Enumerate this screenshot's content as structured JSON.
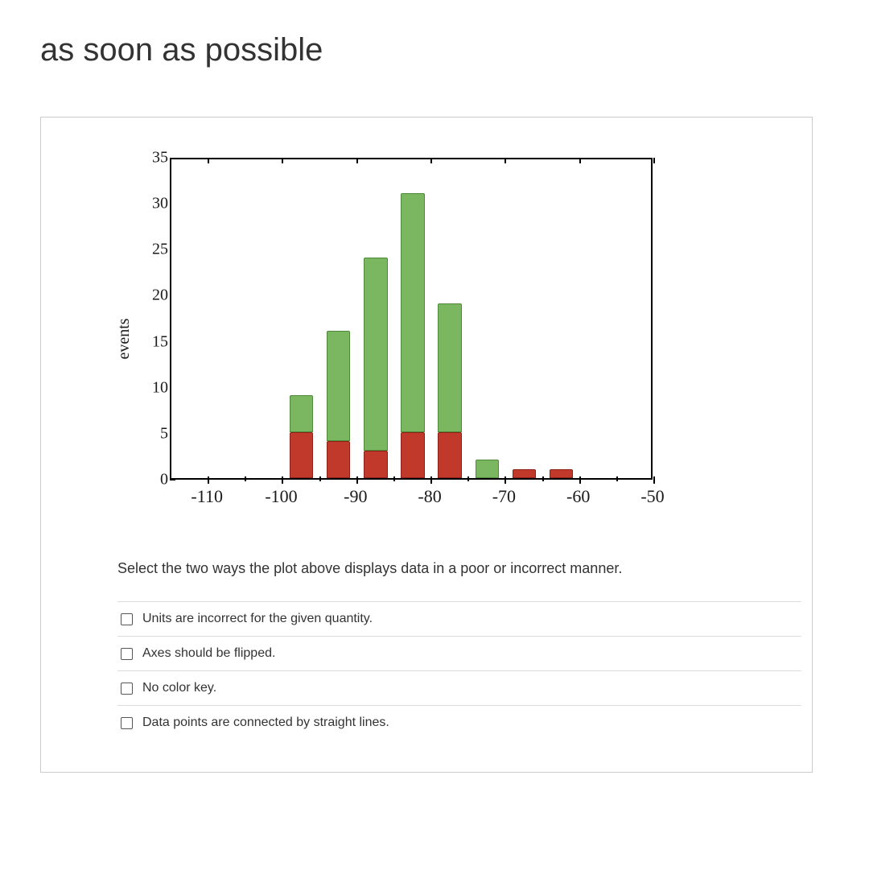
{
  "title": "as soon as possible",
  "chart": {
    "type": "stacked-bar",
    "ylabel": "events",
    "label_fontsize": 20,
    "label_font": "serif",
    "tick_font": "serif",
    "tick_fontsize": 20,
    "xlim": [
      -115,
      -50
    ],
    "ylim": [
      0,
      35
    ],
    "ytick_step": 5,
    "x_major_ticks": [
      -110,
      -100,
      -90,
      -80,
      -70,
      -60,
      -50
    ],
    "x_minor_ticks": [
      -105,
      -95,
      -85,
      -75,
      -65,
      -55
    ],
    "bar_width_units": 3.2,
    "bar_gap_units": 5,
    "series": [
      {
        "name": "red",
        "color": "#c0392b",
        "border": "#8b2118"
      },
      {
        "name": "green",
        "color": "#7bb661",
        "border": "#4f8a3a"
      }
    ],
    "bars": [
      {
        "x": -97.5,
        "red": 5,
        "green": 4
      },
      {
        "x": -92.5,
        "red": 4,
        "green": 12
      },
      {
        "x": -87.5,
        "red": 3,
        "green": 21
      },
      {
        "x": -82.5,
        "red": 5,
        "green": 26
      },
      {
        "x": -77.5,
        "red": 5,
        "green": 14
      },
      {
        "x": -72.5,
        "red": 0,
        "green": 2
      },
      {
        "x": -67.5,
        "red": 1,
        "green": 0
      },
      {
        "x": -62.5,
        "red": 1,
        "green": 0
      }
    ],
    "background_color": "#ffffff",
    "axis_color": "#000000",
    "axis_width": 2
  },
  "question": {
    "prompt": "Select the two ways the plot above displays data in a poor or incorrect manner.",
    "options": [
      "Units are incorrect for the given quantity.",
      "Axes should be flipped.",
      "No color key.",
      "Data points are connected by straight lines."
    ]
  },
  "yticks": [
    "0",
    "5",
    "10",
    "15",
    "20",
    "25",
    "30",
    "35"
  ]
}
